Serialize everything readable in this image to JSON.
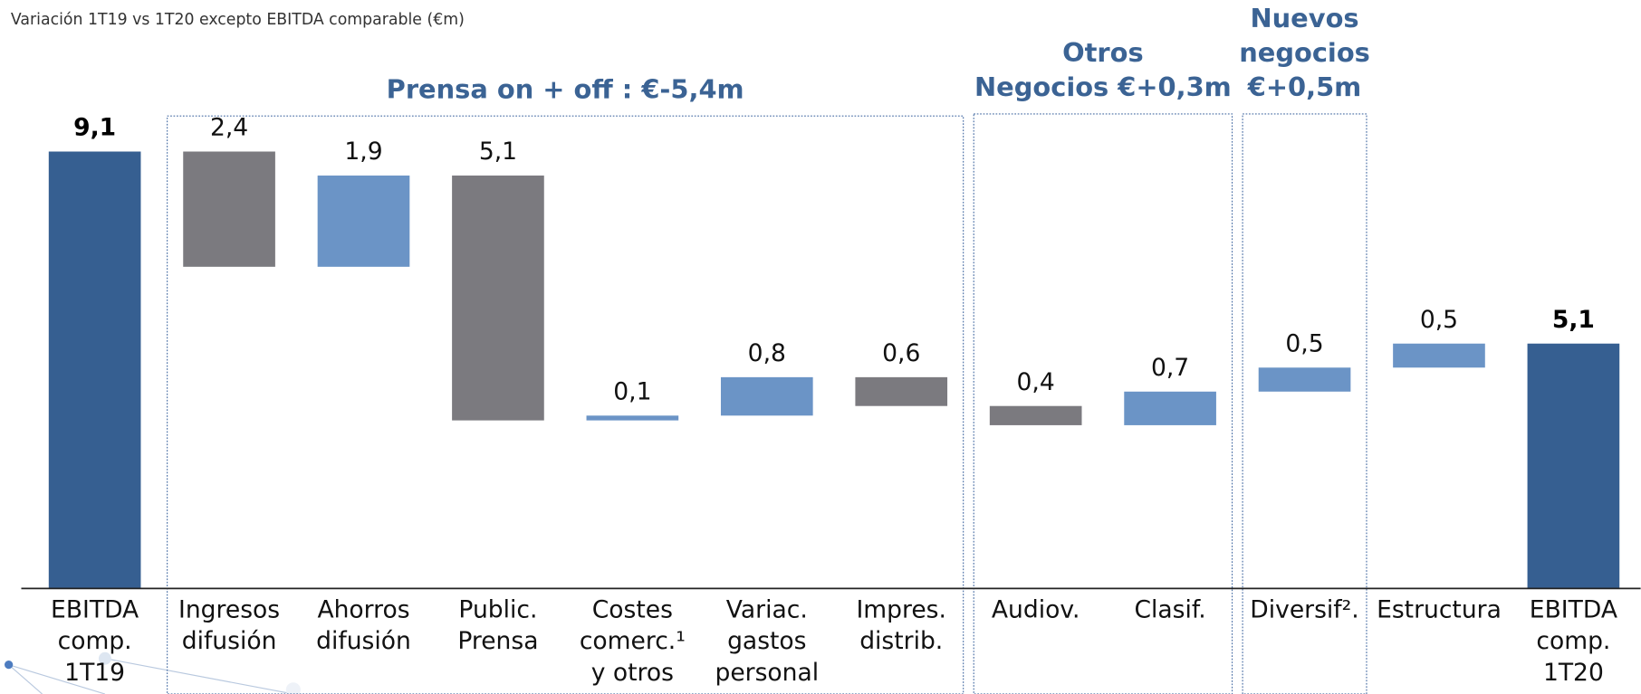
{
  "chart_data": {
    "type": "waterfall",
    "title": "Variación 1T19 vs 1T20 excepto EBITDA comparable (€m)",
    "categories": [
      [
        "EBITDA",
        "comp.",
        "1T19"
      ],
      [
        "Ingresos",
        "difusión"
      ],
      [
        "Ahorros",
        "difusión"
      ],
      [
        "Public.",
        "Prensa"
      ],
      [
        "Costes",
        "comerc.¹",
        "y otros"
      ],
      [
        "Variac.",
        "gastos",
        "personal"
      ],
      [
        "Impres.",
        "distrib."
      ],
      [
        "Audiov."
      ],
      [
        "Clasif."
      ],
      [
        "Diversif²."
      ],
      [
        "Estructura"
      ],
      [
        "EBITDA",
        "comp.",
        "1T20"
      ]
    ],
    "values": [
      9.1,
      -2.4,
      1.9,
      -5.1,
      0.1,
      0.8,
      -0.6,
      -0.4,
      0.7,
      0.5,
      0.5,
      5.1
    ],
    "value_labels": [
      "9,1",
      "2,4",
      "1,9",
      "5,1",
      "0,1",
      "0,8",
      "0,6",
      "0,4",
      "0,7",
      "0,5",
      "0,5",
      "5,1"
    ],
    "colors": [
      "#365f91",
      "#7b7a7f",
      "#6b94c6",
      "#7b7a7f",
      "#6b94c6",
      "#6b94c6",
      "#7b7a7f",
      "#7b7a7f",
      "#6b94c6",
      "#6b94c6",
      "#6b94c6",
      "#365f91"
    ],
    "ylim": [
      0,
      9.1
    ],
    "groups": [
      {
        "title": [
          "Prensa on + off : €-5,4m"
        ],
        "from": 1,
        "to": 6
      },
      {
        "title": [
          "Otros",
          "Negocios €+0,3m"
        ],
        "from": 7,
        "to": 8
      },
      {
        "title": [
          "Nuevos",
          "negocios",
          "€+0,5m"
        ],
        "from": 9,
        "to": 9
      }
    ]
  }
}
